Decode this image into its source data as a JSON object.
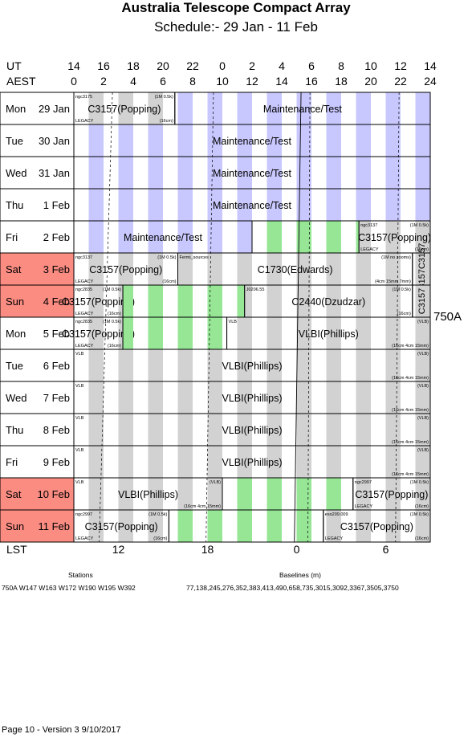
{
  "title": "Australia Telescope Compact Array",
  "subtitle": "Schedule:- 29 Jan - 11 Feb",
  "axes": {
    "ut_label": "UT",
    "aest_label": "AEST",
    "ut_ticks": [
      "14",
      "16",
      "18",
      "20",
      "22",
      "0",
      "2",
      "4",
      "6",
      "8",
      "10",
      "12",
      "14"
    ],
    "aest_ticks": [
      "0",
      "2",
      "4",
      "6",
      "8",
      "10",
      "12",
      "14",
      "16",
      "18",
      "20",
      "22",
      "24"
    ],
    "lst_label": "LST",
    "lst_ticks": [
      {
        "label": "12",
        "hour": 3
      },
      {
        "label": "18",
        "hour": 9
      },
      {
        "label": "0",
        "hour": 15
      },
      {
        "label": "6",
        "hour": 21
      }
    ]
  },
  "config_label": "750A",
  "days": [
    {
      "name": "Mon",
      "date": "29 Jan",
      "weekend": false
    },
    {
      "name": "Tue",
      "date": "30 Jan",
      "weekend": false
    },
    {
      "name": "Wed",
      "date": "31 Jan",
      "weekend": false
    },
    {
      "name": "Thu",
      "date": "1 Feb",
      "weekend": false
    },
    {
      "name": "Fri",
      "date": "2 Feb",
      "weekend": false
    },
    {
      "name": "Sat",
      "date": "3 Feb",
      "weekend": true
    },
    {
      "name": "Sun",
      "date": "4 Feb",
      "weekend": true
    },
    {
      "name": "Mon",
      "date": "5 Feb",
      "weekend": false
    },
    {
      "name": "Tue",
      "date": "6 Feb",
      "weekend": false
    },
    {
      "name": "Wed",
      "date": "7 Feb",
      "weekend": false
    },
    {
      "name": "Thu",
      "date": "8 Feb",
      "weekend": false
    },
    {
      "name": "Fri",
      "date": "9 Feb",
      "weekend": false
    },
    {
      "name": "Sat",
      "date": "10 Feb",
      "weekend": true
    },
    {
      "name": "Sun",
      "date": "11 Feb",
      "weekend": true
    }
  ],
  "stripe_colors": {
    "maintenance": "#c8c8ff",
    "day": "#d2d2d2",
    "green": "#96e696",
    "weekend": "#fa8c82"
  },
  "blocks": [
    {
      "day": 0,
      "start": 0,
      "end": 6.8,
      "stripe": "day",
      "label": "C3157(Popping)",
      "tl": "ngc3175",
      "tr": "(1M 0.5k)",
      "bl": "LEGACY",
      "br": "(16cm)"
    },
    {
      "day": 0,
      "start": 6.8,
      "end": 24,
      "stripe": "maintenance",
      "label": "Maintenance/Test"
    },
    {
      "day": 1,
      "start": 0,
      "end": 24,
      "stripe": "maintenance",
      "label": "Maintenance/Test"
    },
    {
      "day": 2,
      "start": 0,
      "end": 24,
      "stripe": "maintenance",
      "label": "Maintenance/Test"
    },
    {
      "day": 3,
      "start": 0,
      "end": 24,
      "stripe": "maintenance",
      "label": "Maintenance/Test"
    },
    {
      "day": 4,
      "start": 0,
      "end": 12,
      "stripe": "maintenance",
      "label": "Maintenance/Test"
    },
    {
      "day": 4,
      "start": 12,
      "end": 19.2,
      "stripe": "green",
      "label": ""
    },
    {
      "day": 4,
      "start": 19.2,
      "end": 24,
      "stripe": "day",
      "label": "C3157(Popping)",
      "tl": "ngc3137",
      "tr": "(1M 0.5k)",
      "bl": "LEGACY",
      "br": "(16cm)"
    },
    {
      "day": 5,
      "start": 0,
      "end": 7.0,
      "stripe": "day",
      "label": "C3157(Popping)",
      "tl": "ngc3137",
      "tr": "(1M 0.5k)",
      "bl": "LEGACY",
      "br": "(16cm)"
    },
    {
      "day": 5,
      "start": 7.0,
      "end": 22.8,
      "stripe": "day",
      "label": "C1730(Edwards)",
      "tl": "Fermi_sources",
      "tr": "(1M no zooms)",
      "bl": "",
      "br": "(4cm 15mm 7mm)"
    },
    {
      "day": 5,
      "start": 22.8,
      "end": 24,
      "stripe": "day",
      "vlabel": "C3157C3157"
    },
    {
      "day": 6,
      "start": 0,
      "end": 3.3,
      "stripe": "day",
      "label": "C3157(Popping)",
      "tl": "ngc2835",
      "tr": "(1M 0.5k)",
      "bl": "LEGACY",
      "br": "(16cm)"
    },
    {
      "day": 6,
      "start": 3.3,
      "end": 11.5,
      "stripe": "green",
      "label": ""
    },
    {
      "day": 6,
      "start": 11.5,
      "end": 22.8,
      "stripe": "day",
      "label": "C2440(Dzudzar)",
      "tl": "J0206.55",
      "tr": "(1M 0.5k)",
      "bl": "",
      "br": "(16cm)"
    },
    {
      "day": 6,
      "start": 22.8,
      "end": 24,
      "stripe": "day",
      "vlabel": "C3157"
    },
    {
      "day": 7,
      "start": 0,
      "end": 3.3,
      "stripe": "day",
      "label": "C3157(Popping)",
      "tl": "ngc2835",
      "tr": "(1M 0.5k)",
      "bl": "LEGACY",
      "br": "(16cm)"
    },
    {
      "day": 7,
      "start": 3.3,
      "end": 10.3,
      "stripe": "green",
      "label": ""
    },
    {
      "day": 7,
      "start": 10.3,
      "end": 24,
      "stripe": "day",
      "label": "VLBI(Phillips)",
      "tl": "VLB",
      "tr": "(VLB)",
      "bl": "",
      "br": "(16cm 4cm 15mm)"
    },
    {
      "day": 8,
      "start": 0,
      "end": 24,
      "stripe": "day",
      "label": "VLBI(Phillips)",
      "tl": "VLB",
      "tr": "(VLB)",
      "bl": "",
      "br": "(16cm 4cm 15mm)"
    },
    {
      "day": 9,
      "start": 0,
      "end": 24,
      "stripe": "day",
      "label": "VLBI(Phillips)",
      "tl": "VLB",
      "tr": "(VLB)",
      "bl": "",
      "br": "(16cm 4cm 15mm)"
    },
    {
      "day": 10,
      "start": 0,
      "end": 24,
      "stripe": "day",
      "label": "VLBI(Phillips)",
      "tl": "VLB",
      "tr": "(VLB)",
      "bl": "",
      "br": "(16cm 4cm 15mm)"
    },
    {
      "day": 11,
      "start": 0,
      "end": 24,
      "stripe": "day",
      "label": "VLBI(Phillips)",
      "tl": "VLB",
      "tr": "(VLB)",
      "bl": "",
      "br": "(16cm 4cm 15mm)"
    },
    {
      "day": 12,
      "start": 0,
      "end": 10.0,
      "stripe": "day",
      "label": "VLBI(Phillips)",
      "tl": "VLB",
      "tr": "(VLB)",
      "bl": "",
      "br": "(16cm 4cm 15mm)"
    },
    {
      "day": 12,
      "start": 10.0,
      "end": 18.8,
      "stripe": "green",
      "label": ""
    },
    {
      "day": 12,
      "start": 18.8,
      "end": 24,
      "stripe": "day",
      "label": "C3157(Popping)",
      "tl": "ngc2997",
      "tr": "(1M 0.5k)",
      "bl": "LEGACY",
      "br": "(16cm)"
    },
    {
      "day": 13,
      "start": 0,
      "end": 6.4,
      "stripe": "day",
      "label": "C3157(Popping)",
      "tl": "ngc2997",
      "tr": "(1M 0.5k)",
      "bl": "LEGACY",
      "br": "(16cm)"
    },
    {
      "day": 13,
      "start": 6.4,
      "end": 16.8,
      "stripe": "green",
      "label": ""
    },
    {
      "day": 13,
      "start": 16.8,
      "end": 24,
      "stripe": "day",
      "label": "C3157(Popping)",
      "tl": "eso209.009",
      "tr": "(1M 0.5k)",
      "bl": "LEGACY",
      "br": "(16cm)"
    }
  ],
  "footer": {
    "stations_title": "Stations",
    "stations": "750A   W147 W163 W172 W190 W195 W392",
    "baselines_title": "Baselines (m)",
    "baselines": "77,138,245,276,352,383,413,490,658,735,3015,3092,3367,3505,3750",
    "page": "Page 10 - Version 3  9/10/2017"
  }
}
